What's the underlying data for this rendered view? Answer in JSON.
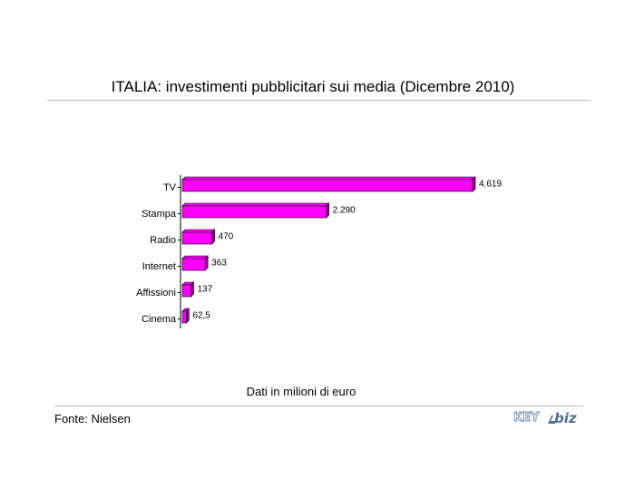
{
  "chart_data": {
    "type": "bar",
    "orientation": "horizontal",
    "title": "ITALIA: investimenti pubblicitari sui media (Dicembre 2010)",
    "categories": [
      "TV",
      "Stampa",
      "Radio",
      "Internet",
      "Affissioni",
      "Cinema"
    ],
    "values": [
      4619,
      2290,
      470,
      363,
      137,
      62.5
    ],
    "value_labels": [
      "4.619",
      "2.290",
      "470",
      "363",
      "137",
      "62,5"
    ],
    "xlim": [
      0,
      4619
    ],
    "grid": false,
    "legend": "none",
    "bar_color": "#ff00ff",
    "bar_shadow_color": "#8b008b",
    "caption": "Dati in milioni di euro"
  },
  "footer": {
    "source": "Fonte: Nielsen",
    "logo_text_key": "KEY",
    "logo_text_biz": "biz"
  },
  "colors": {
    "rule": "#bdbdbd",
    "logo_blue": "#4f6f94"
  }
}
